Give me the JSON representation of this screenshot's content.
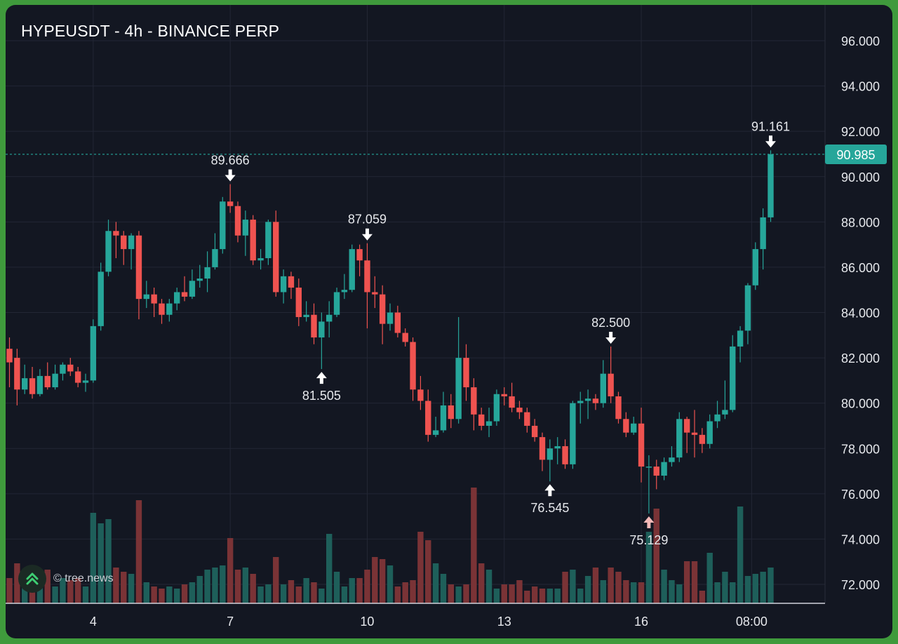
{
  "header": {
    "title": "HYPEUSDT - 4h - BINANCE PERP"
  },
  "watermark": {
    "text": "© tree.news",
    "icon": "tree-news-logo-icon"
  },
  "colors": {
    "background": "#131722",
    "grid": "#232735",
    "up": "#26a69a",
    "down": "#ef5350",
    "up_volume": "#1e5f5a",
    "down_volume": "#7a3336",
    "price_tag": "#26a69a",
    "text": "#e6e8ec",
    "frame": "#3f9a3c"
  },
  "chart_data": {
    "type": "candlestick",
    "title": "HYPEUSDT - 4h - BINANCE PERP",
    "interval": "4h",
    "y_axis": {
      "ticks": [
        96.0,
        94.0,
        92.0,
        90.0,
        88.0,
        86.0,
        84.0,
        82.0,
        80.0,
        78.0,
        76.0,
        74.0,
        72.0
      ],
      "tick_labels": [
        "96.000",
        "94.000",
        "92.000",
        "90.000",
        "88.000",
        "86.000",
        "84.000",
        "82.000",
        "80.000",
        "78.000",
        "76.000",
        "74.000",
        "72.000"
      ],
      "range": [
        71.0,
        97.2
      ],
      "position": "right"
    },
    "x_axis": {
      "tick_labels": [
        "4",
        "7",
        "10",
        "13",
        "16",
        "08:00"
      ],
      "tick_index": [
        11,
        29,
        47,
        65,
        83,
        97.5
      ]
    },
    "grid": true,
    "last_price": 90.985,
    "last_price_label": "90.985",
    "candles": [
      [
        82.4,
        81.8,
        82.9,
        80.7
      ],
      [
        82.0,
        80.6,
        82.4,
        79.9
      ],
      [
        80.6,
        81.1,
        81.7,
        80.4
      ],
      [
        81.1,
        80.4,
        81.6,
        80.2
      ],
      [
        80.4,
        81.2,
        81.5,
        80.3
      ],
      [
        81.2,
        80.7,
        81.8,
        80.6
      ],
      [
        80.7,
        81.3,
        81.7,
        80.6
      ],
      [
        81.3,
        81.7,
        81.8,
        81.0
      ],
      [
        81.7,
        81.4,
        82.0,
        81.2
      ],
      [
        81.4,
        80.9,
        81.6,
        80.7
      ],
      [
        80.9,
        81.0,
        81.3,
        80.5
      ],
      [
        81.0,
        83.4,
        83.7,
        80.9
      ],
      [
        83.4,
        85.8,
        86.2,
        83.2
      ],
      [
        85.8,
        87.6,
        88.1,
        85.6
      ],
      [
        87.6,
        87.4,
        88.0,
        86.4
      ],
      [
        87.4,
        86.8,
        87.6,
        86.1
      ],
      [
        86.8,
        87.4,
        87.5,
        85.9
      ],
      [
        87.4,
        84.6,
        87.6,
        83.7
      ],
      [
        84.6,
        84.8,
        85.4,
        84.2
      ],
      [
        84.8,
        84.4,
        85.1,
        83.8
      ],
      [
        84.4,
        83.9,
        84.6,
        83.5
      ],
      [
        83.9,
        84.4,
        84.6,
        83.6
      ],
      [
        84.4,
        84.9,
        85.1,
        84.1
      ],
      [
        84.9,
        84.7,
        85.6,
        84.5
      ],
      [
        84.7,
        85.4,
        85.9,
        84.6
      ],
      [
        85.4,
        85.5,
        86.1,
        85.1
      ],
      [
        85.5,
        86.0,
        86.7,
        84.9
      ],
      [
        86.0,
        86.8,
        87.5,
        85.9
      ],
      [
        86.8,
        88.9,
        89.1,
        86.6
      ],
      [
        88.9,
        88.7,
        89.666,
        88.4
      ],
      [
        88.7,
        87.4,
        88.9,
        87.1
      ],
      [
        87.4,
        88.1,
        88.5,
        86.5
      ],
      [
        88.1,
        86.3,
        88.3,
        86.1
      ],
      [
        86.3,
        86.4,
        86.8,
        85.9
      ],
      [
        86.4,
        88.0,
        88.1,
        86.1
      ],
      [
        88.0,
        84.9,
        88.5,
        84.7
      ],
      [
        84.9,
        85.6,
        85.9,
        84.4
      ],
      [
        85.6,
        85.1,
        85.8,
        84.6
      ],
      [
        85.1,
        83.8,
        85.5,
        83.4
      ],
      [
        83.8,
        83.9,
        84.5,
        83.6
      ],
      [
        83.9,
        82.9,
        84.4,
        82.6
      ],
      [
        82.9,
        83.6,
        84.0,
        81.505
      ],
      [
        83.6,
        83.9,
        84.5,
        82.9
      ],
      [
        83.9,
        84.9,
        85.1,
        83.8
      ],
      [
        84.9,
        85.0,
        85.7,
        84.6
      ],
      [
        85.0,
        86.8,
        87.0,
        84.9
      ],
      [
        86.8,
        86.3,
        87.0,
        85.6
      ],
      [
        86.3,
        84.9,
        87.059,
        83.3
      ],
      [
        84.9,
        84.8,
        85.6,
        84.2
      ],
      [
        84.8,
        83.5,
        85.2,
        82.6
      ],
      [
        83.5,
        84.0,
        84.4,
        83.2
      ],
      [
        84.0,
        83.1,
        84.3,
        82.9
      ],
      [
        83.1,
        82.7,
        83.3,
        82.5
      ],
      [
        82.7,
        80.6,
        82.9,
        80.1
      ],
      [
        80.6,
        80.1,
        81.2,
        79.7
      ],
      [
        80.1,
        78.6,
        80.6,
        78.3
      ],
      [
        78.6,
        78.8,
        79.4,
        78.5
      ],
      [
        78.8,
        79.9,
        80.5,
        78.7
      ],
      [
        79.9,
        79.3,
        80.4,
        78.9
      ],
      [
        79.3,
        82.0,
        83.8,
        79.1
      ],
      [
        82.0,
        80.7,
        82.6,
        80.1
      ],
      [
        80.7,
        79.5,
        81.1,
        78.8
      ],
      [
        79.5,
        79.0,
        79.8,
        78.8
      ],
      [
        79.0,
        79.2,
        79.8,
        78.5
      ],
      [
        79.2,
        80.4,
        80.6,
        79.0
      ],
      [
        80.4,
        80.3,
        80.7,
        79.9
      ],
      [
        80.3,
        79.8,
        80.9,
        79.6
      ],
      [
        79.8,
        79.6,
        80.1,
        79.3
      ],
      [
        79.6,
        79.0,
        79.8,
        78.7
      ],
      [
        79.0,
        78.5,
        79.3,
        78.3
      ],
      [
        78.5,
        77.5,
        78.7,
        77.0
      ],
      [
        77.5,
        78.0,
        78.4,
        76.545
      ],
      [
        78.0,
        78.1,
        78.5,
        77.3
      ],
      [
        78.1,
        77.3,
        78.4,
        77.1
      ],
      [
        77.3,
        80.0,
        80.1,
        77.1
      ],
      [
        80.0,
        80.1,
        80.5,
        79.1
      ],
      [
        80.1,
        80.2,
        80.6,
        79.3
      ],
      [
        80.2,
        80.0,
        80.4,
        79.7
      ],
      [
        80.0,
        81.3,
        81.9,
        79.8
      ],
      [
        81.3,
        80.3,
        82.5,
        80.0
      ],
      [
        80.3,
        79.3,
        80.5,
        79.1
      ],
      [
        79.3,
        78.7,
        79.6,
        78.5
      ],
      [
        78.7,
        79.1,
        79.4,
        78.6
      ],
      [
        79.1,
        77.2,
        79.8,
        76.5
      ],
      [
        77.2,
        77.2,
        77.7,
        75.129
      ],
      [
        77.2,
        76.8,
        77.5,
        76.2
      ],
      [
        76.8,
        77.4,
        77.6,
        76.6
      ],
      [
        77.4,
        77.6,
        78.1,
        77.2
      ],
      [
        77.6,
        79.3,
        79.6,
        77.4
      ],
      [
        79.3,
        78.7,
        79.4,
        77.8
      ],
      [
        78.7,
        78.6,
        79.7,
        77.6
      ],
      [
        78.6,
        78.2,
        78.9,
        77.8
      ],
      [
        78.2,
        79.2,
        79.5,
        78.0
      ],
      [
        79.2,
        79.5,
        80.1,
        78.9
      ],
      [
        79.5,
        79.7,
        81.0,
        79.3
      ],
      [
        79.7,
        82.5,
        83.0,
        79.6
      ],
      [
        82.5,
        83.2,
        83.4,
        81.8
      ],
      [
        83.2,
        85.2,
        85.3,
        82.6
      ],
      [
        85.2,
        86.8,
        87.1,
        85.0
      ],
      [
        86.8,
        88.2,
        88.6,
        85.9
      ],
      [
        88.2,
        90.985,
        91.161,
        88.0
      ]
    ],
    "candle_fields": [
      "open",
      "close",
      "high",
      "low"
    ],
    "volume": [
      12,
      19,
      12,
      11,
      10,
      16,
      8,
      12,
      11,
      12,
      8,
      43,
      38,
      40,
      17,
      15,
      14,
      49,
      10,
      8,
      7,
      8,
      7,
      9,
      10,
      13,
      16,
      17,
      18,
      31,
      16,
      17,
      14,
      8,
      9,
      22,
      9,
      11,
      8,
      12,
      10,
      7,
      33,
      15,
      8,
      12,
      12,
      16,
      22,
      21,
      18,
      8,
      10,
      11,
      34,
      30,
      19,
      14,
      9,
      8,
      9,
      55,
      19,
      16,
      7,
      9,
      9,
      11,
      6,
      8,
      7,
      7,
      7,
      15,
      16,
      7,
      13,
      17,
      11,
      17,
      15,
      11,
      10,
      10,
      34,
      45,
      16,
      11,
      9,
      20,
      20,
      6,
      24,
      10,
      15,
      10,
      46,
      13,
      14,
      15,
      17
    ],
    "annotations": [
      {
        "label": "89.666",
        "candle_index": 29,
        "price": 89.666,
        "position": "above",
        "arrow": "down"
      },
      {
        "label": "81.505",
        "candle_index": 41,
        "price": 81.505,
        "position": "below",
        "arrow": "up"
      },
      {
        "label": "87.059",
        "candle_index": 47,
        "price": 87.059,
        "position": "above",
        "arrow": "down"
      },
      {
        "label": "76.545",
        "candle_index": 71,
        "price": 76.545,
        "position": "below",
        "arrow": "up"
      },
      {
        "label": "82.500",
        "candle_index": 79,
        "price": 82.5,
        "position": "above",
        "arrow": "down"
      },
      {
        "label": "75.129",
        "candle_index": 84,
        "price": 75.129,
        "position": "below",
        "arrow": "up"
      },
      {
        "label": "91.161",
        "candle_index": 100,
        "price": 91.161,
        "position": "above",
        "arrow": "down"
      }
    ]
  }
}
